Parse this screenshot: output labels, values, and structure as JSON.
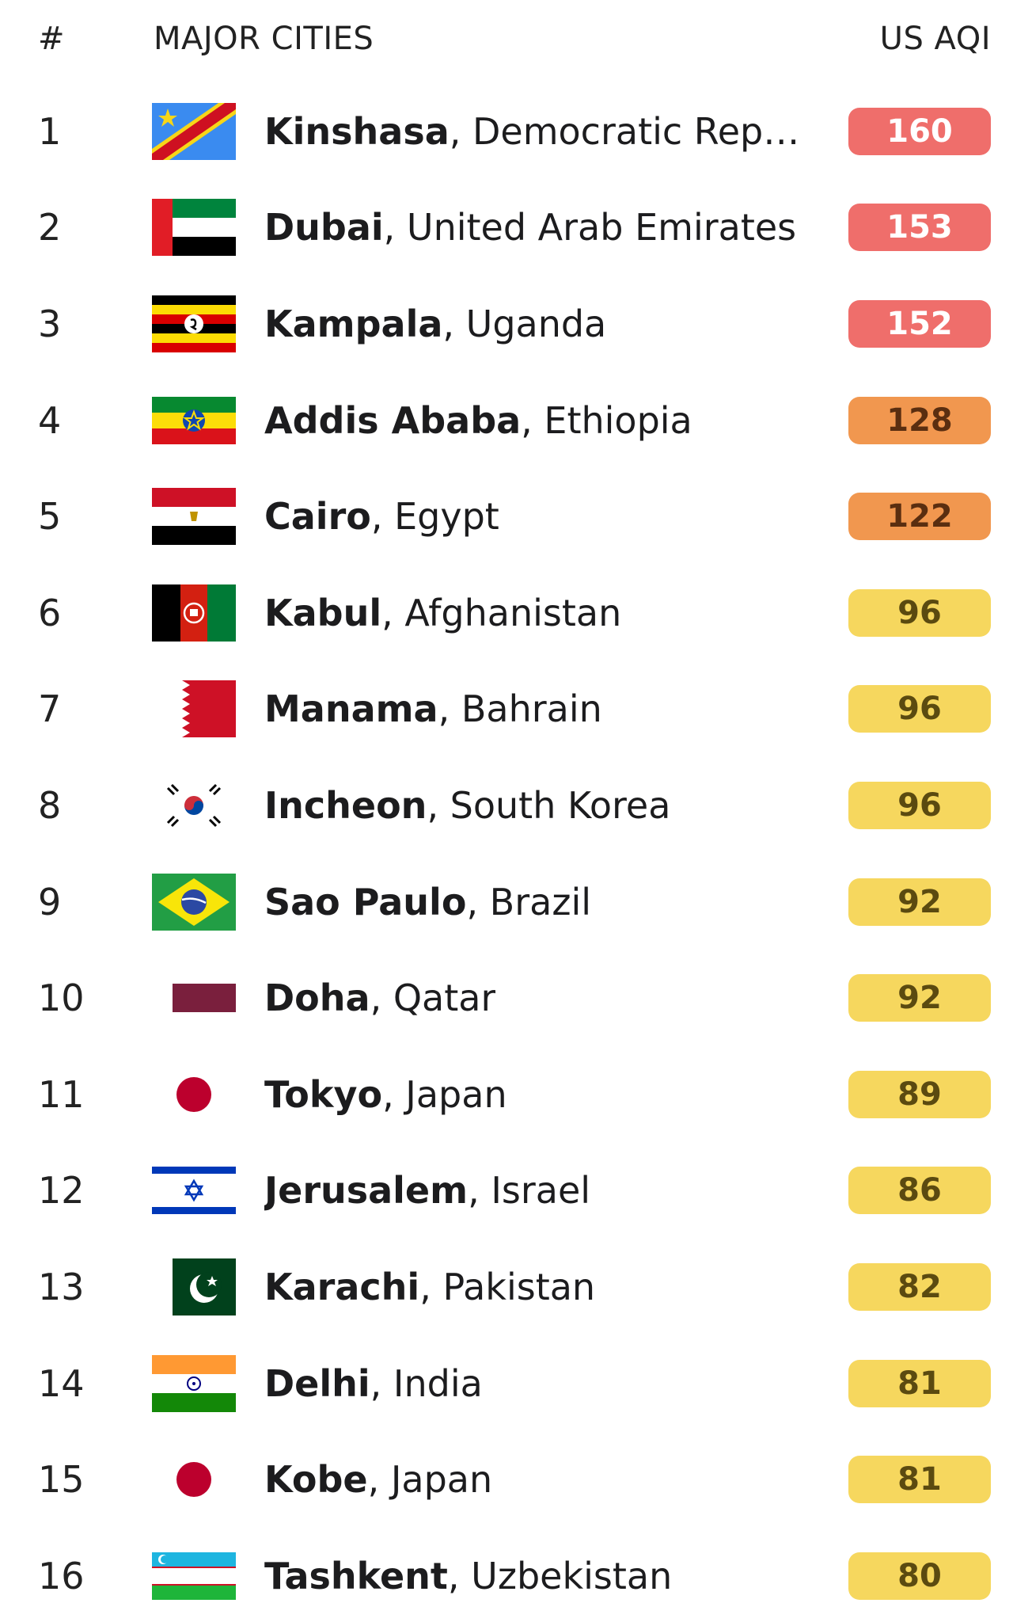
{
  "header": {
    "rank": "#",
    "city": "MAJOR CITIES",
    "aqi": "US AQI"
  },
  "colors": {
    "unhealthy": "#ef6e6b",
    "sensitive": "#f1974f",
    "moderate": "#f6d75e"
  },
  "rows": [
    {
      "rank": "1",
      "city": "Kinshasa",
      "country": ", Democratic Republi...",
      "aqi": "160",
      "level": "unhealthy",
      "flag": "dr-congo-flag-icon"
    },
    {
      "rank": "2",
      "city": "Dubai",
      "country": ", United Arab Emirates",
      "aqi": "153",
      "level": "unhealthy",
      "flag": "uae-flag-icon"
    },
    {
      "rank": "3",
      "city": "Kampala",
      "country": ", Uganda",
      "aqi": "152",
      "level": "unhealthy",
      "flag": "uganda-flag-icon"
    },
    {
      "rank": "4",
      "city": "Addis Ababa",
      "country": ", Ethiopia",
      "aqi": "128",
      "level": "sensitive",
      "flag": "ethiopia-flag-icon"
    },
    {
      "rank": "5",
      "city": "Cairo",
      "country": ", Egypt",
      "aqi": "122",
      "level": "sensitive",
      "flag": "egypt-flag-icon"
    },
    {
      "rank": "6",
      "city": "Kabul",
      "country": ", Afghanistan",
      "aqi": "96",
      "level": "moderate",
      "flag": "afghanistan-flag-icon"
    },
    {
      "rank": "7",
      "city": "Manama",
      "country": ", Bahrain",
      "aqi": "96",
      "level": "moderate",
      "flag": "bahrain-flag-icon"
    },
    {
      "rank": "8",
      "city": "Incheon",
      "country": ", South Korea",
      "aqi": "96",
      "level": "moderate",
      "flag": "south-korea-flag-icon"
    },
    {
      "rank": "9",
      "city": "Sao Paulo",
      "country": ", Brazil",
      "aqi": "92",
      "level": "moderate",
      "flag": "brazil-flag-icon"
    },
    {
      "rank": "10",
      "city": "Doha",
      "country": ", Qatar",
      "aqi": "92",
      "level": "moderate",
      "flag": "qatar-flag-icon"
    },
    {
      "rank": "11",
      "city": "Tokyo",
      "country": ", Japan",
      "aqi": "89",
      "level": "moderate",
      "flag": "japan-flag-icon"
    },
    {
      "rank": "12",
      "city": "Jerusalem",
      "country": ", Israel",
      "aqi": "86",
      "level": "moderate",
      "flag": "israel-flag-icon"
    },
    {
      "rank": "13",
      "city": "Karachi",
      "country": ", Pakistan",
      "aqi": "82",
      "level": "moderate",
      "flag": "pakistan-flag-icon"
    },
    {
      "rank": "14",
      "city": "Delhi",
      "country": ", India",
      "aqi": "81",
      "level": "moderate",
      "flag": "india-flag-icon"
    },
    {
      "rank": "15",
      "city": "Kobe",
      "country": ", Japan",
      "aqi": "81",
      "level": "moderate",
      "flag": "japan-flag-icon"
    },
    {
      "rank": "16",
      "city": "Tashkent",
      "country": ", Uzbekistan",
      "aqi": "80",
      "level": "moderate",
      "flag": "uzbekistan-flag-icon"
    }
  ]
}
